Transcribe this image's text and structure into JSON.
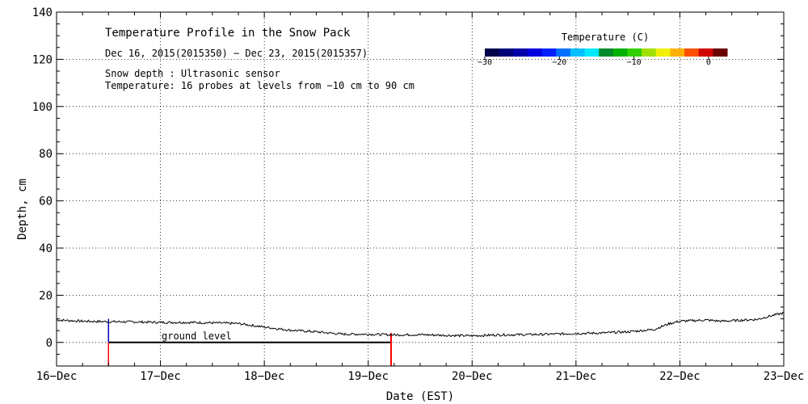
{
  "chart_data": {
    "type": "line",
    "title": "Temperature Profile in the Snow Pack",
    "subtitle": "Dec 16, 2015(2015350) − Dec 23, 2015(2015357)",
    "notes": [
      "Snow depth : Ultrasonic sensor",
      "Temperature: 16 probes at levels from −10 cm to 90 cm"
    ],
    "xlabel": "Date (EST)",
    "ylabel": "Depth, cm",
    "x_ticks": [
      "16−Dec",
      "17−Dec",
      "18−Dec",
      "19−Dec",
      "20−Dec",
      "21−Dec",
      "22−Dec",
      "23−Dec"
    ],
    "xlim": [
      0,
      7
    ],
    "ylim": [
      -10,
      140
    ],
    "y_ticks": [
      0,
      20,
      40,
      60,
      80,
      100,
      120,
      140
    ],
    "grid": true,
    "legend": {
      "title": "Temperature (C)",
      "tick_labels": [
        "−30",
        "−20",
        "−10",
        "0"
      ],
      "range": [
        -30,
        2.5
      ],
      "colors": [
        "#00004a",
        "#000078",
        "#0000a8",
        "#0000dc",
        "#0020ff",
        "#0070ff",
        "#00c0ff",
        "#00e8ff",
        "#008a2a",
        "#00b000",
        "#30d000",
        "#a0e000",
        "#f0f000",
        "#ffb000",
        "#ff5000",
        "#d00000",
        "#6a0000"
      ]
    },
    "annotation": "ground level",
    "ground_level": {
      "value": 0,
      "x_start": 0.5,
      "x_end": 3.22,
      "start_marker_color": "#0000c0",
      "end_marker_color": "#ff0000"
    },
    "series": [
      {
        "label": "snow depth",
        "color": "#000000",
        "x": [
          0.0,
          0.25,
          0.5,
          0.75,
          1.0,
          1.25,
          1.5,
          1.75,
          2.0,
          2.25,
          2.5,
          2.75,
          3.0,
          3.25,
          3.5,
          3.75,
          4.0,
          4.25,
          4.5,
          4.75,
          5.0,
          5.25,
          5.5,
          5.75,
          5.9,
          6.0,
          6.25,
          6.4,
          6.5,
          6.75,
          6.85,
          7.0
        ],
        "y": [
          9.5,
          9.0,
          8.8,
          8.7,
          8.5,
          8.5,
          8.3,
          8.0,
          6.5,
          5.2,
          4.5,
          3.5,
          3.5,
          3.2,
          3.3,
          3.0,
          2.8,
          3.2,
          3.3,
          3.5,
          3.8,
          4.0,
          4.5,
          5.5,
          8.0,
          9.0,
          9.5,
          9.0,
          9.2,
          9.8,
          11.0,
          12.5
        ]
      }
    ]
  }
}
